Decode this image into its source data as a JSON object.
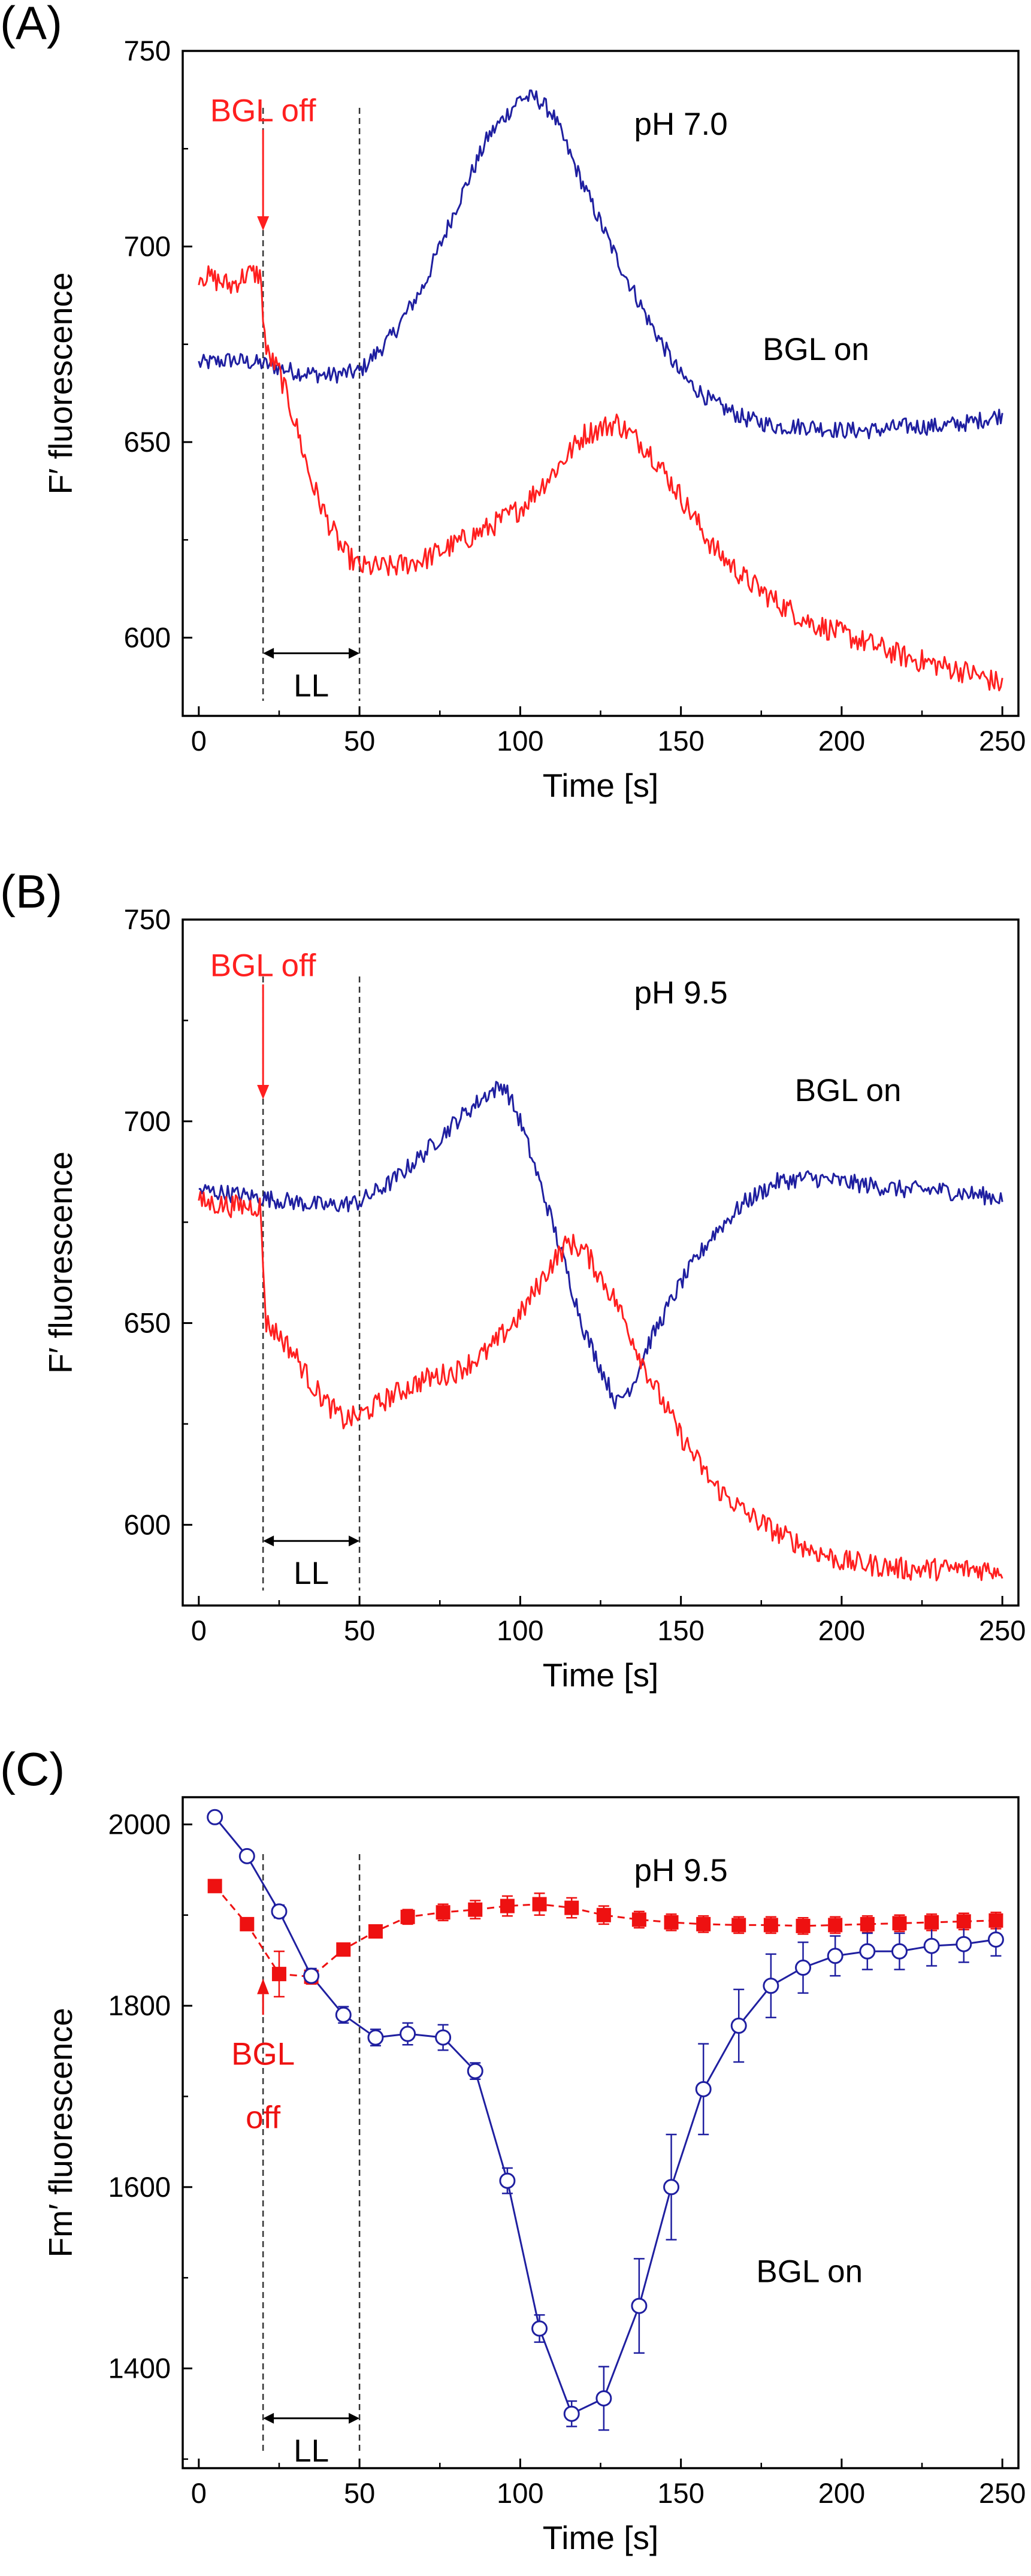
{
  "chart_data": [
    {
      "type": "line",
      "panel_label": "(A)",
      "annotation": "pH 7.0",
      "xlabel": "Time [s]",
      "ylabel": "F′ fluorescence",
      "xlim": [
        -5,
        255
      ],
      "ylim": [
        580,
        750
      ],
      "x_ticks": [
        0,
        50,
        100,
        150,
        200,
        250
      ],
      "y_ticks": [
        600,
        650,
        700,
        750
      ],
      "marker_lines_x": [
        20,
        50
      ],
      "arrow_label": "LL",
      "arrow_x": [
        20,
        50
      ],
      "arrow_y": 596,
      "series": [
        {
          "name": "BGL on",
          "color": "#1f1fa0",
          "label_at": [
            192,
            671
          ],
          "points": [
            [
              0,
              670
            ],
            [
              10,
              671
            ],
            [
              20,
              670
            ],
            [
              30,
              668
            ],
            [
              40,
              667
            ],
            [
              50,
              668
            ],
            [
              60,
              677
            ],
            [
              70,
              690
            ],
            [
              80,
              710
            ],
            [
              90,
              728
            ],
            [
              100,
              738
            ],
            [
              105,
              738
            ],
            [
              110,
              734
            ],
            [
              120,
              715
            ],
            [
              130,
              697
            ],
            [
              140,
              681
            ],
            [
              150,
              667
            ],
            [
              160,
              660
            ],
            [
              170,
              656
            ],
            [
              180,
              654
            ],
            [
              190,
              654
            ],
            [
              200,
              653
            ],
            [
              210,
              653
            ],
            [
              220,
              654
            ],
            [
              230,
              654
            ],
            [
              240,
              655
            ],
            [
              250,
              657
            ]
          ],
          "noise": 2.2
        },
        {
          "name": "BGL off",
          "color": "#ff1f1f",
          "label_at": [
            20,
            732
          ],
          "points": [
            [
              0,
              693
            ],
            [
              10,
              690
            ],
            [
              15,
              693
            ],
            [
              19,
              693
            ],
            [
              21,
              673
            ],
            [
              25,
              668
            ],
            [
              30,
              655
            ],
            [
              35,
              640
            ],
            [
              40,
              630
            ],
            [
              45,
              622
            ],
            [
              50,
              618
            ],
            [
              60,
              618
            ],
            [
              70,
              620
            ],
            [
              80,
              624
            ],
            [
              90,
              628
            ],
            [
              100,
              633
            ],
            [
              110,
              642
            ],
            [
              120,
              652
            ],
            [
              130,
              655
            ],
            [
              140,
              648
            ],
            [
              150,
              636
            ],
            [
              160,
              623
            ],
            [
              170,
              615
            ],
            [
              180,
              609
            ],
            [
              190,
              604
            ],
            [
              200,
              601
            ],
            [
              210,
              598
            ],
            [
              220,
              595
            ],
            [
              230,
              593
            ],
            [
              240,
              591
            ],
            [
              250,
              588
            ]
          ],
          "noise": 3
        }
      ]
    },
    {
      "type": "line",
      "panel_label": "(B)",
      "annotation": "pH 9.5",
      "xlabel": "Time [s]",
      "ylabel": "F′ fluorescence",
      "xlim": [
        -5,
        255
      ],
      "ylim": [
        580,
        750
      ],
      "x_ticks": [
        0,
        50,
        100,
        150,
        200,
        250
      ],
      "y_ticks": [
        600,
        650,
        700,
        750
      ],
      "marker_lines_x": [
        20,
        50
      ],
      "arrow_label": "LL",
      "arrow_x": [
        20,
        50
      ],
      "arrow_y": 596,
      "series": [
        {
          "name": "BGL on",
          "color": "#1f1fa0",
          "label_at": [
            202,
            705
          ],
          "points": [
            [
              0,
              683
            ],
            [
              10,
              682
            ],
            [
              20,
              681
            ],
            [
              30,
              680
            ],
            [
              40,
              679
            ],
            [
              50,
              680
            ],
            [
              60,
              685
            ],
            [
              70,
              692
            ],
            [
              80,
              700
            ],
            [
              90,
              707
            ],
            [
              95,
              709
            ],
            [
              100,
              700
            ],
            [
              110,
              675
            ],
            [
              120,
              648
            ],
            [
              130,
              630
            ],
            [
              135,
              635
            ],
            [
              140,
              645
            ],
            [
              150,
              660
            ],
            [
              160,
              672
            ],
            [
              170,
              680
            ],
            [
              180,
              685
            ],
            [
              190,
              686
            ],
            [
              200,
              685
            ],
            [
              210,
              684
            ],
            [
              220,
              683
            ],
            [
              230,
              683
            ],
            [
              240,
              682
            ],
            [
              250,
              681
            ]
          ],
          "noise": 2.2
        },
        {
          "name": "BGL off",
          "color": "#ff1f1f",
          "label_at": [
            20,
            736
          ],
          "points": [
            [
              0,
              680
            ],
            [
              10,
              679
            ],
            [
              19,
              679
            ],
            [
              21,
              650
            ],
            [
              25,
              647
            ],
            [
              30,
              642
            ],
            [
              35,
              635
            ],
            [
              40,
              630
            ],
            [
              45,
              626
            ],
            [
              50,
              627
            ],
            [
              60,
              632
            ],
            [
              70,
              636
            ],
            [
              80,
              638
            ],
            [
              90,
              643
            ],
            [
              100,
              652
            ],
            [
              110,
              665
            ],
            [
              115,
              670
            ],
            [
              120,
              668
            ],
            [
              130,
              655
            ],
            [
              140,
              637
            ],
            [
              150,
              622
            ],
            [
              160,
              610
            ],
            [
              170,
              603
            ],
            [
              180,
              598
            ],
            [
              190,
              594
            ],
            [
              200,
              591
            ],
            [
              210,
              590
            ],
            [
              220,
              589
            ],
            [
              230,
              589
            ],
            [
              240,
              589
            ],
            [
              250,
              589
            ]
          ],
          "noise": 2.8
        }
      ]
    },
    {
      "type": "scatter",
      "panel_label": "(C)",
      "annotation": "pH 9.5",
      "xlabel": "Time [s]",
      "ylabel": "Fm′ fluorescence",
      "xlim": [
        -5,
        255
      ],
      "ylim": [
        1290,
        2030
      ],
      "x_ticks": [
        0,
        50,
        100,
        150,
        200,
        250
      ],
      "y_ticks": [
        1400,
        1600,
        1800,
        2000
      ],
      "marker_lines_x": [
        20,
        50
      ],
      "arrow_label": "LL",
      "arrow_x": [
        20,
        50
      ],
      "arrow_y": 1345,
      "off_label": [
        "BGL",
        "off"
      ],
      "series": [
        {
          "name": "BGL on",
          "color": "#1f1fa0",
          "marker": "open-circle",
          "label_at": [
            190,
            1495
          ],
          "x": [
            5,
            15,
            25,
            35,
            45,
            55,
            65,
            76,
            86,
            96,
            106,
            116,
            126,
            137,
            147,
            157,
            168,
            178,
            188,
            198,
            208,
            218,
            228,
            238,
            248
          ],
          "y": [
            2008,
            1965,
            1904,
            1833,
            1790,
            1765,
            1769,
            1765,
            1728,
            1607,
            1444,
            1350,
            1367,
            1469,
            1600,
            1708,
            1778,
            1822,
            1842,
            1855,
            1860,
            1860,
            1866,
            1868,
            1873
          ],
          "err": [
            4,
            5,
            7,
            8,
            9,
            9,
            12,
            14,
            9,
            14,
            15,
            14,
            35,
            52,
            58,
            50,
            40,
            35,
            28,
            22,
            20,
            20,
            22,
            20,
            18
          ]
        },
        {
          "name": "BGL off",
          "color": "#ee1111",
          "marker": "filled-square",
          "x": [
            5,
            15,
            25,
            35,
            45,
            55,
            65,
            76,
            86,
            96,
            106,
            116,
            126,
            137,
            147,
            157,
            168,
            178,
            188,
            198,
            208,
            218,
            228,
            238,
            248
          ],
          "y": [
            1932,
            1890,
            1835,
            1832,
            1862,
            1882,
            1898,
            1903,
            1906,
            1910,
            1912,
            1908,
            1900,
            1895,
            1892,
            1890,
            1889,
            1889,
            1888,
            1889,
            1890,
            1891,
            1892,
            1893,
            1894
          ],
          "err": [
            3,
            5,
            25,
            8,
            6,
            7,
            8,
            9,
            10,
            11,
            12,
            11,
            10,
            9,
            9,
            9,
            9,
            9,
            9,
            9,
            9,
            9,
            9,
            9,
            9
          ]
        }
      ]
    }
  ]
}
